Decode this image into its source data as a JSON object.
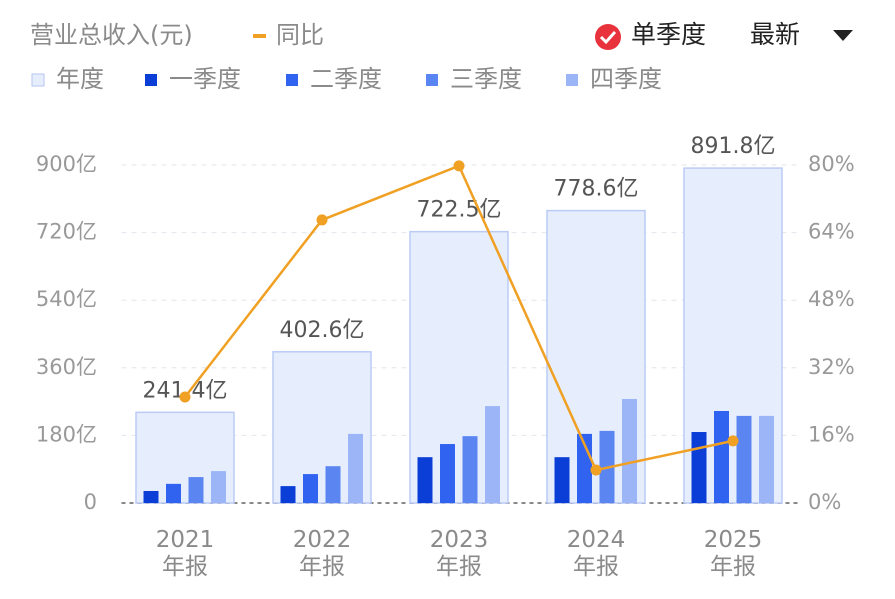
{
  "chart_data": {
    "type": "bar",
    "title": "营业总收入(元)",
    "controls": {
      "mode": "单季度",
      "period": "最新"
    },
    "categories": [
      "2021\n年报",
      "2022\n年报",
      "2023\n年报",
      "2024\n年报",
      "2025\n年报"
    ],
    "series": [
      {
        "name": "年度",
        "color": "#e6edfd",
        "values": [
          241.4,
          402.6,
          722.5,
          778.6,
          891.8
        ],
        "value_labels": [
          "241.4亿",
          "402.6亿",
          "722.5亿",
          "778.6亿",
          "891.8亿"
        ]
      },
      {
        "name": "一季度",
        "color": "#0a3ed6",
        "values": [
          32,
          45,
          122,
          122,
          189
        ]
      },
      {
        "name": "二季度",
        "color": "#2f63f0",
        "values": [
          51,
          77,
          157,
          184,
          245
        ]
      },
      {
        "name": "三季度",
        "color": "#5b86f2",
        "values": [
          69,
          98,
          178,
          192,
          232
        ]
      },
      {
        "name": "四季度",
        "color": "#9cb5f7",
        "values": [
          85,
          184,
          258,
          277,
          232
        ]
      },
      {
        "name": "同比",
        "type": "line",
        "axis": "y2",
        "color": "#f0a023",
        "values": [
          25.1,
          67,
          79.8,
          7.8,
          14.7
        ]
      }
    ],
    "ylim": [
      0,
      900
    ],
    "yticks": [
      {
        "value": 0,
        "label": "0"
      },
      {
        "value": 180,
        "label": "180亿"
      },
      {
        "value": 360,
        "label": "360亿"
      },
      {
        "value": 540,
        "label": "540亿"
      },
      {
        "value": 720,
        "label": "720亿"
      },
      {
        "value": 900,
        "label": "900亿"
      }
    ],
    "y2lim": [
      0,
      80
    ],
    "y2ticks": [
      {
        "value": 0,
        "label": "0%"
      },
      {
        "value": 16,
        "label": "16%"
      },
      {
        "value": 32,
        "label": "32%"
      },
      {
        "value": 48,
        "label": "48%"
      },
      {
        "value": 64,
        "label": "64%"
      },
      {
        "value": 80,
        "label": "80%"
      }
    ],
    "grid": true
  }
}
